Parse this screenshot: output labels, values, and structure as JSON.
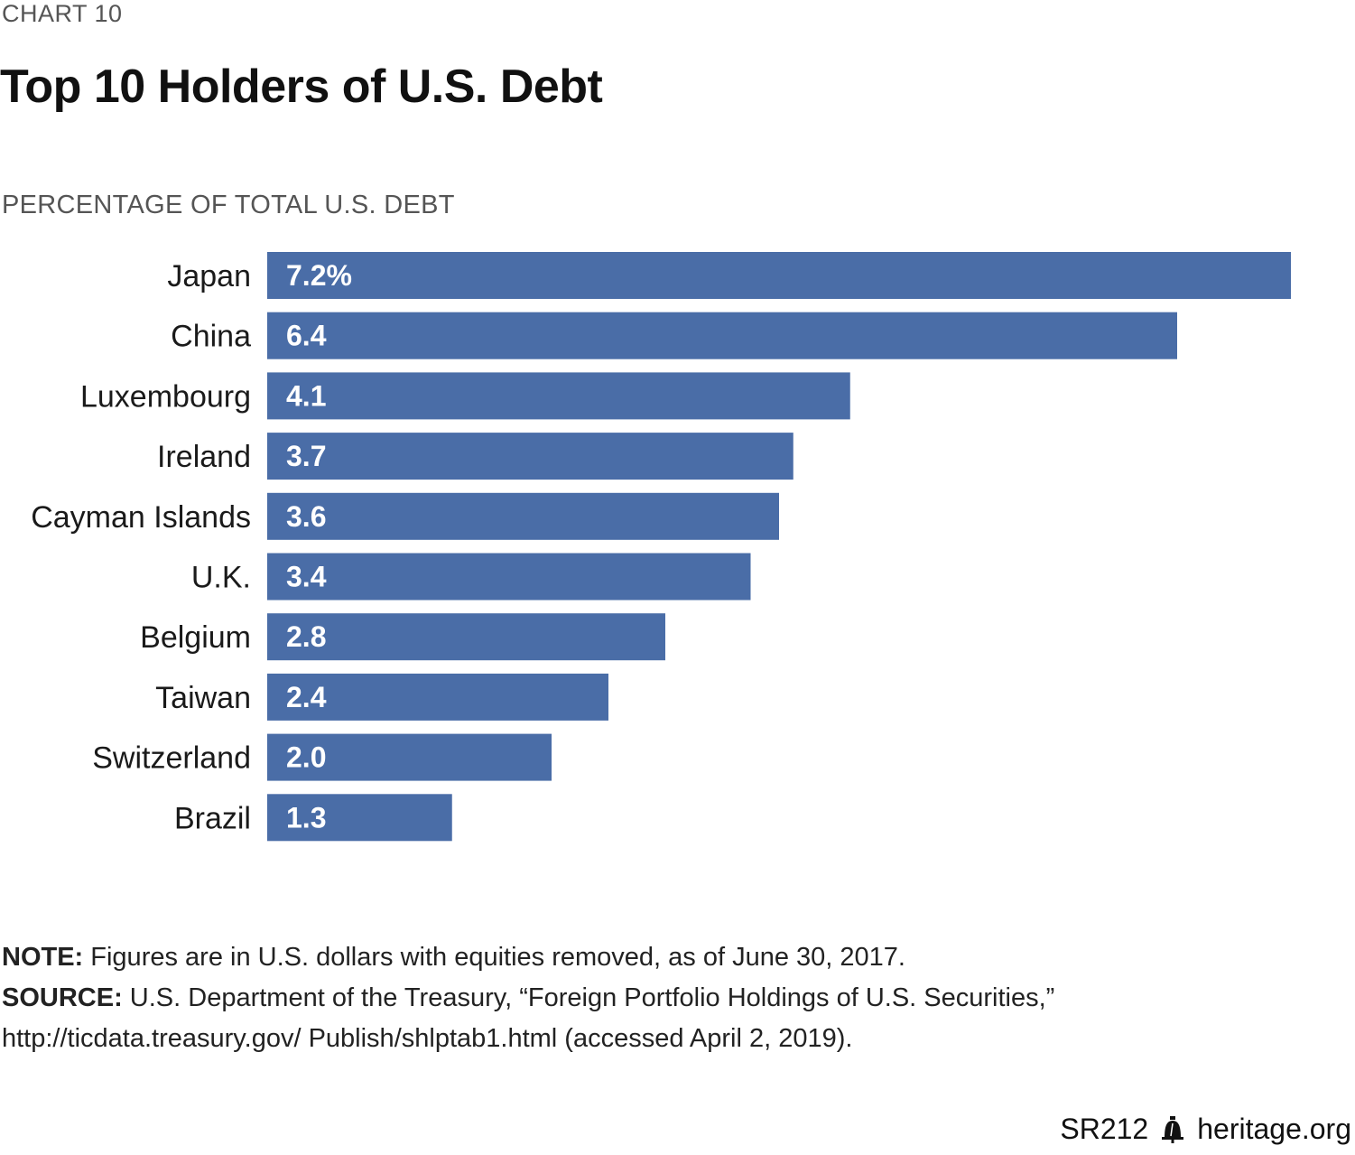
{
  "header": {
    "chart_number": "CHART 10",
    "title": "Top 10 Holders of U.S. Debt",
    "subtitle": "PERCENTAGE OF TOTAL U.S. DEBT"
  },
  "chart_data": {
    "type": "bar",
    "orientation": "horizontal",
    "categories": [
      "Japan",
      "China",
      "Luxembourg",
      "Ireland",
      "Cayman Islands",
      "U.K.",
      "Belgium",
      "Taiwan",
      "Switzerland",
      "Brazil"
    ],
    "values": [
      7.2,
      6.4,
      4.1,
      3.7,
      3.6,
      3.4,
      2.8,
      2.4,
      2.0,
      1.3
    ],
    "value_labels": [
      "7.2%",
      "6.4",
      "4.1",
      "3.7",
      "3.6",
      "3.4",
      "2.8",
      "2.4",
      "2.0",
      "1.3"
    ],
    "title": "Top 10 Holders of U.S. Debt",
    "ylabel": "PERCENTAGE OF TOTAL U.S. DEBT",
    "xlim": [
      0,
      7.2
    ],
    "grid": false,
    "bar_color": "#4a6da7"
  },
  "notes": {
    "note_label": "NOTE:",
    "note_text": " Figures are in U.S. dollars with equities removed, as of June 30, 2017.",
    "source_label": "SOURCE:",
    "source_text": " U.S. Department of the Treasury, “Foreign Portfolio Holdings of U.S. Securities,”",
    "source_text_2": "http://ticdata.treasury.gov/ Publish/shlptab1.html (accessed April 2, 2019)."
  },
  "footer": {
    "report_id": "SR212",
    "site": "heritage.org",
    "logo_icon": "liberty-bell-icon"
  }
}
